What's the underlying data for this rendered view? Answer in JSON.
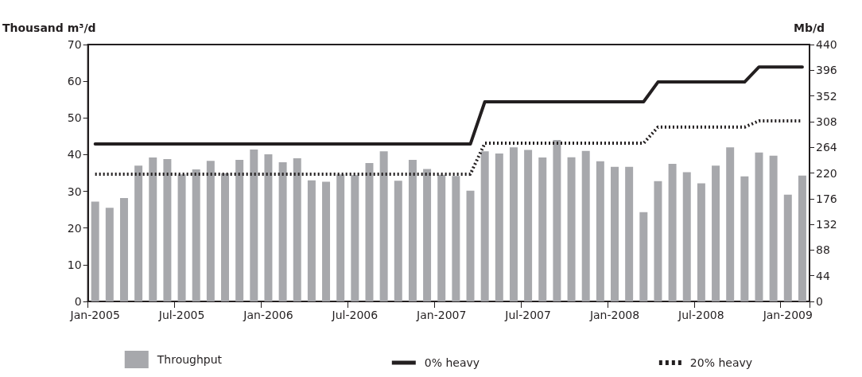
{
  "chart_data": {
    "type": "bar",
    "ylabel": "Thousand m³/d",
    "y2label": "Mb/d",
    "categories": [
      "Jan-2005",
      null,
      null,
      null,
      null,
      null,
      "Jul-2005",
      null,
      null,
      null,
      null,
      null,
      "Jan-2006",
      null,
      null,
      null,
      null,
      null,
      "Jul-2006",
      null,
      null,
      null,
      null,
      null,
      "Jan-2007",
      null,
      null,
      null,
      null,
      null,
      "Jul-2007",
      null,
      null,
      null,
      null,
      null,
      "Jan-2008",
      null,
      null,
      null,
      null,
      null,
      "Jul-2008",
      null,
      null,
      null,
      null,
      null,
      "Jan-2009",
      null
    ],
    "series": [
      {
        "name": "Throughput",
        "color": "#a7a8ac",
        "values": [
          27.2,
          25.5,
          28.2,
          37,
          39.2,
          38.8,
          34.6,
          36,
          38.3,
          34.9,
          38.6,
          41.4,
          40.1,
          37.9,
          39,
          33,
          32.6,
          34.6,
          34.4,
          37.7,
          40.9,
          32.9,
          38.6,
          36.1,
          34.5,
          34.2,
          30.2,
          40.9,
          40.3,
          42,
          41.3,
          39.2,
          44,
          39.3,
          41,
          38.2,
          36.7,
          36.7,
          24.3,
          32.8,
          37.5,
          35.2,
          32.2,
          37,
          42,
          34.1,
          40.6,
          39.7,
          29.1,
          34.3
        ]
      },
      {
        "name": "0% heavy",
        "type": "line",
        "color": "#231f20",
        "line_style": "solid",
        "values": [
          42.9,
          42.9,
          42.9,
          42.9,
          42.9,
          42.9,
          42.9,
          42.9,
          42.9,
          42.9,
          42.9,
          42.9,
          42.9,
          42.9,
          42.9,
          42.9,
          42.9,
          42.9,
          42.9,
          42.9,
          42.9,
          42.9,
          42.9,
          42.9,
          42.9,
          42.9,
          42.9,
          54.4,
          54.4,
          54.4,
          54.4,
          54.4,
          54.4,
          54.4,
          54.4,
          54.4,
          54.4,
          54.4,
          54.4,
          59.8,
          59.8,
          59.8,
          59.8,
          59.8,
          59.8,
          59.8,
          63.9,
          63.9,
          63.9,
          63.9
        ]
      },
      {
        "name": "20% heavy",
        "type": "line",
        "color": "#231f20",
        "line_style": "dotted",
        "values": [
          34.7,
          34.7,
          34.7,
          34.7,
          34.7,
          34.7,
          34.7,
          34.7,
          34.7,
          34.7,
          34.7,
          34.7,
          34.7,
          34.7,
          34.7,
          34.7,
          34.7,
          34.7,
          34.7,
          34.7,
          34.7,
          34.7,
          34.7,
          34.7,
          34.7,
          34.7,
          34.7,
          43.1,
          43.1,
          43.1,
          43.1,
          43.1,
          43.1,
          43.1,
          43.1,
          43.1,
          43.1,
          43.1,
          43.1,
          47.5,
          47.5,
          47.5,
          47.5,
          47.5,
          47.5,
          47.5,
          49.2,
          49.2,
          49.2,
          49.2
        ]
      }
    ],
    "ylim": [
      0,
      70
    ],
    "yticks": [
      0,
      10,
      20,
      30,
      40,
      50,
      60,
      70
    ],
    "y2lim": [
      0,
      440
    ],
    "y2ticks": [
      0,
      44,
      88,
      132,
      176,
      220,
      264,
      308,
      352,
      396,
      440
    ],
    "grid": false,
    "legend": "bottom",
    "marker": "none"
  }
}
